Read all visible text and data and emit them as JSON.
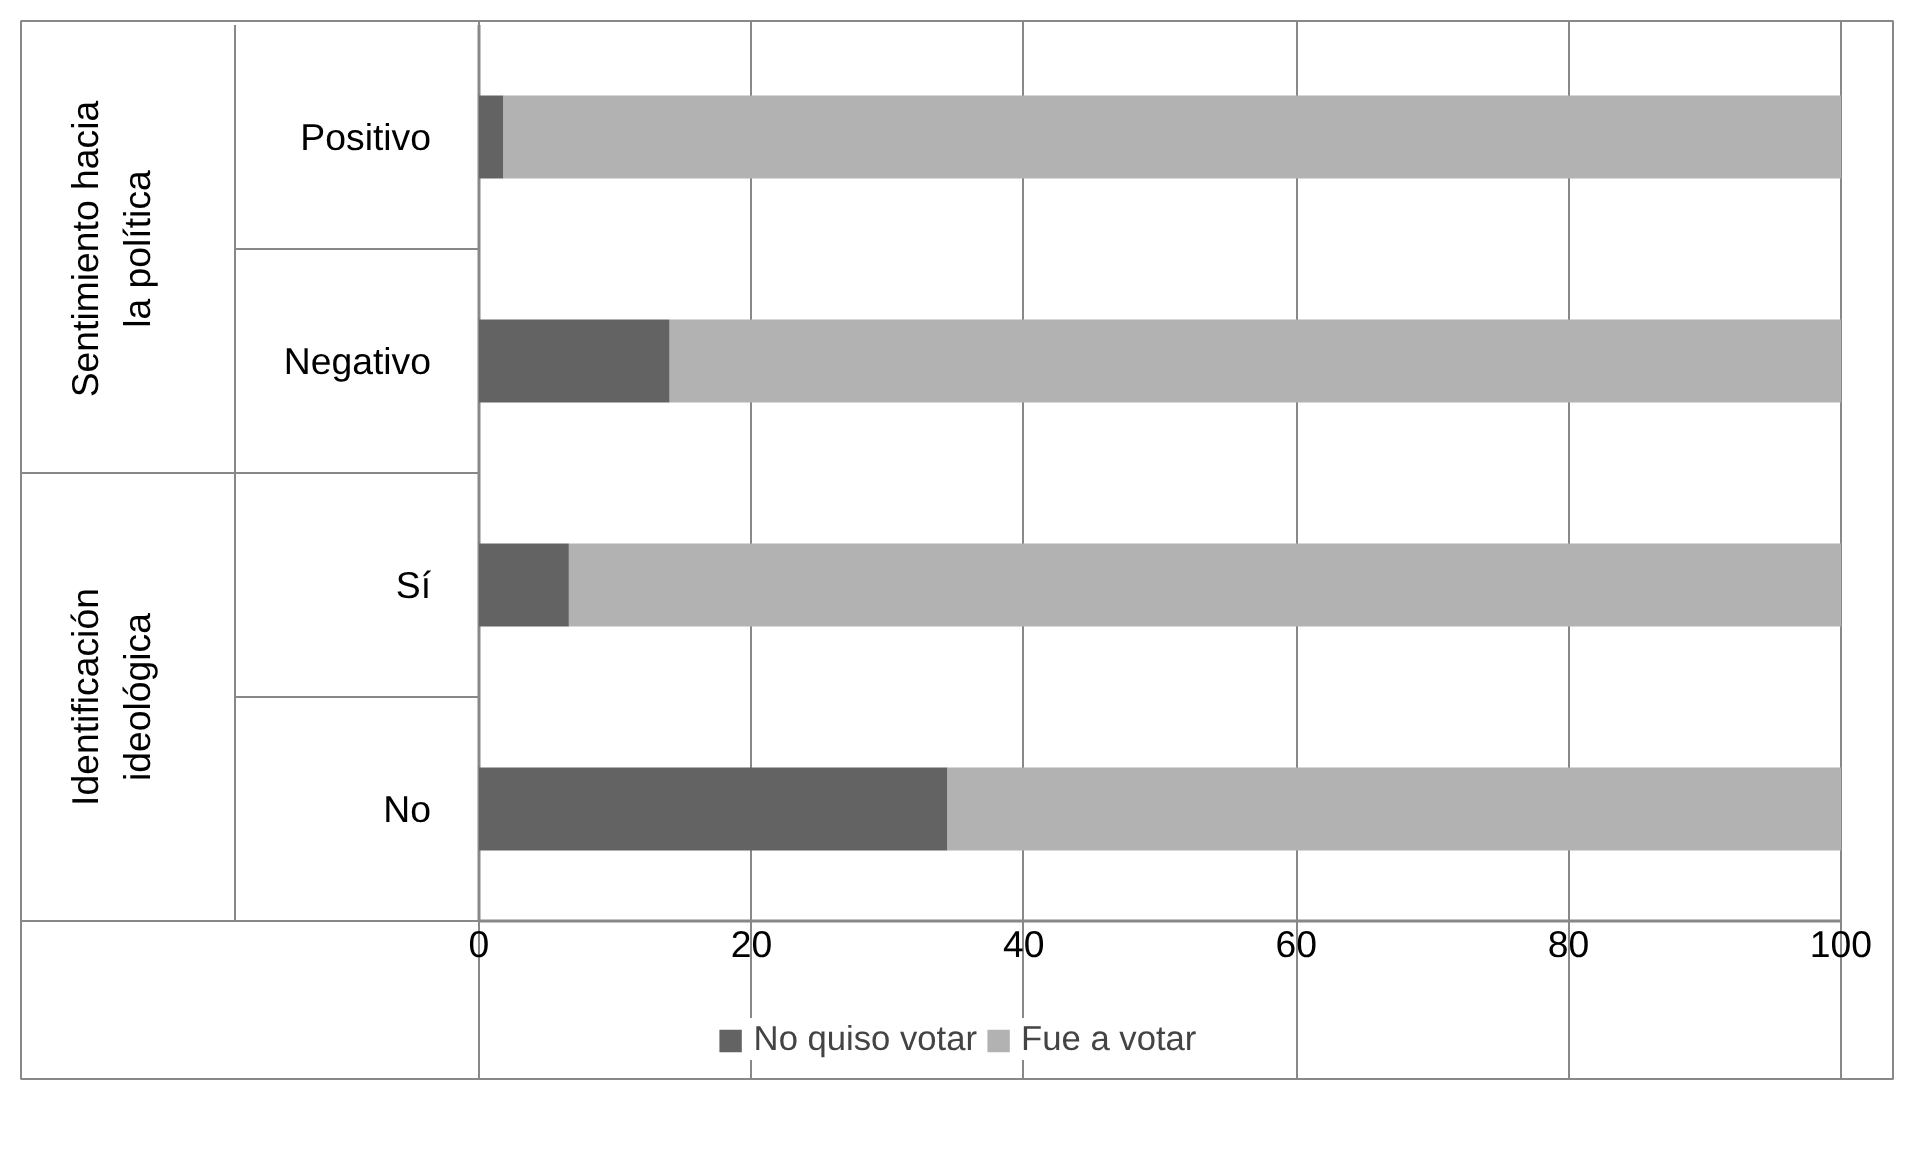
{
  "chart_data": {
    "type": "bar",
    "orientation": "horizontal",
    "stacked": true,
    "categories": [
      "Positivo",
      "Negativo",
      "Sí",
      "No"
    ],
    "series": [
      {
        "name": "No quiso votar",
        "color": "#636363",
        "values": [
          1.8,
          14.0,
          6.6,
          34.4
        ]
      },
      {
        "name": "Fue a votar",
        "color": "#b2b2b2",
        "values": [
          98.2,
          86.0,
          93.4,
          65.6
        ]
      }
    ],
    "annotations": [
      "Sentimiento hacia la política",
      "Identificación ideológica"
    ],
    "xlim": [
      0,
      100
    ],
    "xticks": [
      0,
      20,
      40,
      60,
      80,
      100
    ],
    "grid": "x",
    "legend": "bottom"
  }
}
